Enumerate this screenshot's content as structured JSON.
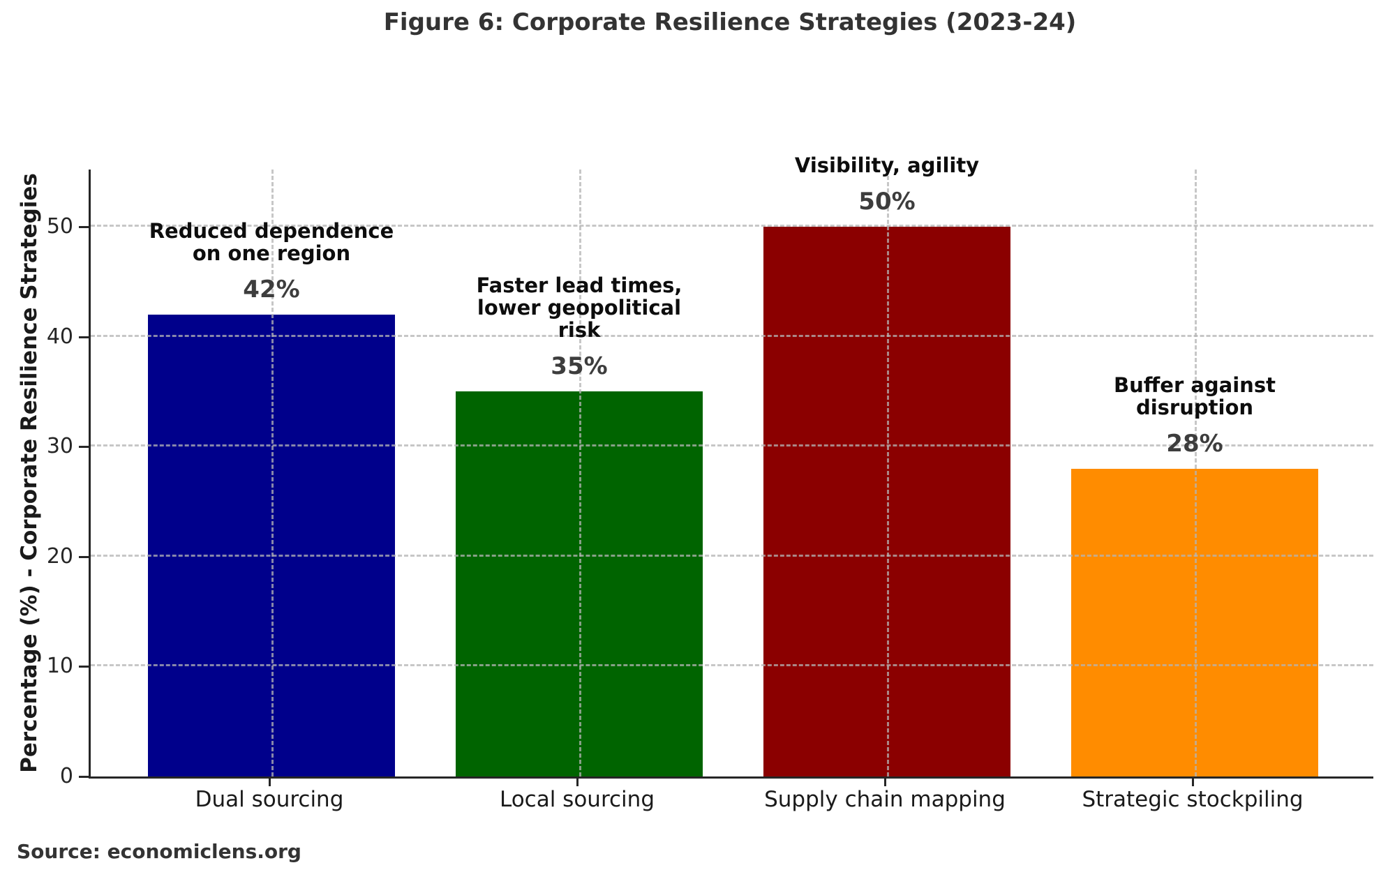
{
  "title": "Figure 6: Corporate Resilience Strategies (2023-24)",
  "source_note": "Source: economiclens.org",
  "chart_data": {
    "type": "bar",
    "title": "Figure 6: Corporate Resilience Strategies (2023-24)",
    "categories": [
      "Dual sourcing",
      "Local sourcing",
      "Supply chain mapping",
      "Strategic stockpiling"
    ],
    "values": [
      42,
      35,
      50,
      28
    ],
    "value_labels": [
      "42%",
      "35%",
      "50%",
      "28%"
    ],
    "annotations": [
      "Reduced dependence\non one region",
      "Faster lead times,\nlower geopolitical\nrisk",
      "Visibility, agility",
      "Buffer against\ndisruption"
    ],
    "bar_colors": [
      "#00008b",
      "#006400",
      "#8b0000",
      "#ff8c00"
    ],
    "xlabel": "",
    "ylabel": "Percentage (%) - Corporate Resilience Strategies",
    "yticks": [
      0,
      10,
      20,
      30,
      40,
      50
    ],
    "ylim": [
      0,
      55.2
    ],
    "grid": "dashed, horizontal and vertical, drawn above bars",
    "legend": "none",
    "source": "Source: economiclens.org"
  }
}
